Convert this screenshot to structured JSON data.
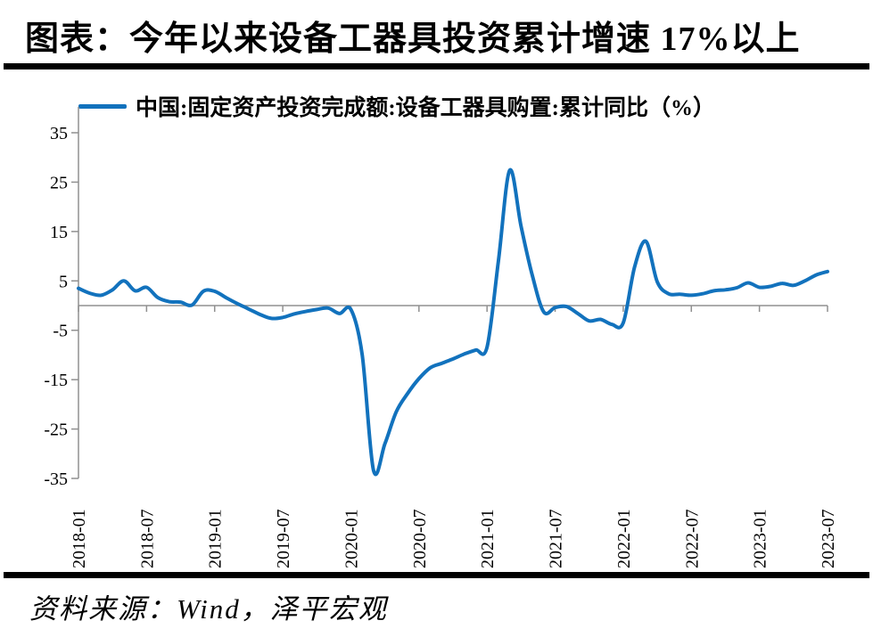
{
  "title": "图表：今年以来设备工器具投资累计增速 17%以上",
  "legend": {
    "label": "中国:固定资产投资完成额:设备工器具购置:累计同比（%）"
  },
  "source": "资料来源：Wind，泽平宏观",
  "colors": {
    "line": "#1272BD",
    "axis": "#909090",
    "text": "#000000"
  },
  "chart_data": {
    "type": "line",
    "title": "图表：今年以来设备工器具投资累计增速 17%以上",
    "xlabel": "",
    "ylabel": "",
    "grid": false,
    "legend_position": "top",
    "ylim": [
      -35,
      40
    ],
    "y_ticks": [
      35,
      25,
      15,
      5,
      -5,
      -15,
      -25,
      -35
    ],
    "x_tick_labels": [
      "2018-01",
      "2018-07",
      "2019-01",
      "2019-07",
      "2020-01",
      "2020-07",
      "2021-01",
      "2021-07",
      "2022-01",
      "2022-07",
      "2023-01",
      "2023-07"
    ],
    "x_tick_month_indices": [
      0,
      6,
      12,
      18,
      24,
      30,
      36,
      42,
      48,
      54,
      60,
      66
    ],
    "series": [
      {
        "name": "中国:固定资产投资完成额:设备工器具购置:累计同比（%）",
        "x": [
          "2018-01",
          "2018-02",
          "2018-03",
          "2018-04",
          "2018-05",
          "2018-06",
          "2018-07",
          "2018-08",
          "2018-09",
          "2018-10",
          "2018-11",
          "2018-12",
          "2019-01",
          "2019-02",
          "2019-03",
          "2019-04",
          "2019-05",
          "2019-06",
          "2019-07",
          "2019-08",
          "2019-09",
          "2019-10",
          "2019-11",
          "2019-12",
          "2020-01",
          "2020-02",
          "2020-03",
          "2020-04",
          "2020-05",
          "2020-06",
          "2020-07",
          "2020-08",
          "2020-09",
          "2020-10",
          "2020-11",
          "2020-12",
          "2021-01",
          "2021-02",
          "2021-03",
          "2021-04",
          "2021-05",
          "2021-06",
          "2021-07",
          "2021-08",
          "2021-09",
          "2021-10",
          "2021-11",
          "2021-12",
          "2022-01",
          "2022-02",
          "2022-03",
          "2022-04",
          "2022-05",
          "2022-06",
          "2022-07",
          "2022-08",
          "2022-09",
          "2022-10",
          "2022-11",
          "2022-12",
          "2023-01",
          "2023-02",
          "2023-03",
          "2023-04",
          "2023-05",
          "2023-06",
          "2023-07"
        ],
        "values": [
          3.5,
          2.5,
          2.1,
          3.2,
          5.0,
          3.0,
          3.7,
          1.6,
          0.8,
          0.7,
          0.1,
          2.9,
          2.9,
          1.6,
          0.4,
          -0.7,
          -1.8,
          -2.6,
          -2.4,
          -1.7,
          -1.2,
          -0.8,
          -0.5,
          -1.6,
          -0.8,
          -10.0,
          -33.4,
          -28.0,
          -21.5,
          -17.8,
          -14.8,
          -12.6,
          -11.7,
          -10.8,
          -9.8,
          -9.0,
          -8.4,
          9.0,
          27.4,
          16.0,
          6.0,
          -1.3,
          -0.4,
          -0.2,
          -1.6,
          -3.1,
          -2.8,
          -3.8,
          -3.5,
          7.8,
          13.0,
          4.8,
          2.4,
          2.3,
          2.1,
          2.4,
          3.0,
          3.2,
          3.6,
          4.6,
          3.7,
          3.9,
          4.5,
          4.1,
          5.0,
          6.2,
          6.9
        ]
      }
    ]
  }
}
